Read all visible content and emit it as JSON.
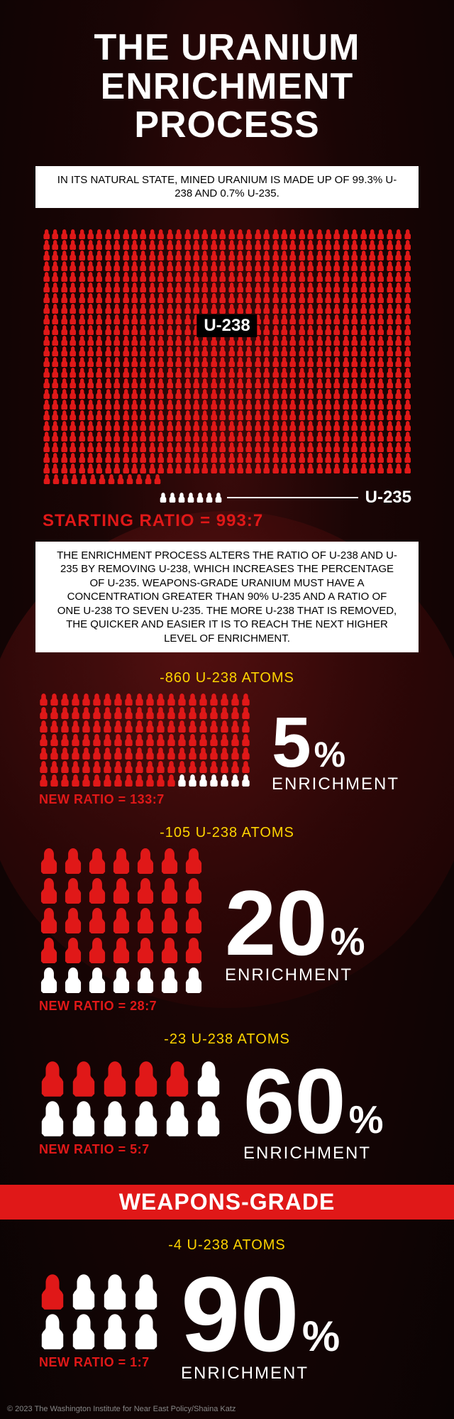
{
  "title_line1": "THE URANIUM",
  "title_line2": "ENRICHMENT",
  "title_line3": "PROCESS",
  "intro_box": "IN ITS NATURAL STATE, MINED URANIUM IS MADE UP OF 99.3% U-238 AND 0.7% U-235.",
  "starting_grid": {
    "rows": 24,
    "cols": 42,
    "last_row_u238": 13,
    "u238_label": "U-238",
    "u235_count": 7,
    "u235_label": "U-235"
  },
  "starting_ratio": "STARTING RATIO = 993:7",
  "process_box": "THE ENRICHMENT PROCESS ALTERS THE RATIO OF U-238 AND U-235 BY REMOVING U-238, WHICH INCREASES THE PERCENTAGE OF U-235. WEAPONS-GRADE URANIUM MUST HAVE A CONCENTRATION GREATER THAN 90% U-235 AND A RATIO OF ONE U-238 TO SEVEN U-235. THE MORE U-238 THAT IS REMOVED, THE QUICKER AND EASIER IT IS TO REACH THE NEXT HIGHER LEVEL OF ENRICHMENT.",
  "colors": {
    "u238": "#e01818",
    "u235": "#ffffff",
    "accent_yellow": "#ffd400",
    "accent_red": "#e01818"
  },
  "stages": [
    {
      "removed": "-860 U-238 ATOMS",
      "grid": {
        "rows": 7,
        "cols": 20,
        "u238": 133,
        "u235": 7
      },
      "ratio": "NEW RATIO = 133:7",
      "pct_num": "5",
      "pct_sign": "%",
      "pct_num_size": 100,
      "pct_sign_size": 50,
      "label": "ENRICHMENT",
      "atom_class": "atom-med"
    },
    {
      "removed": "-105 U-238 ATOMS",
      "grid": {
        "rows": 5,
        "cols": 7,
        "u238": 28,
        "u235": 7
      },
      "ratio": "NEW RATIO = 28:7",
      "pct_num": "20",
      "pct_sign": "%",
      "pct_num_size": 130,
      "pct_sign_size": 55,
      "label": "ENRICHMENT",
      "atom_class": "atom-lg"
    },
    {
      "removed": "-23 U-238 ATOMS",
      "grid": {
        "rows": 2,
        "cols": 6,
        "u238": 5,
        "u235": 7
      },
      "ratio": "NEW RATIO = 5:7",
      "pct_num": "60",
      "pct_sign": "%",
      "pct_num_size": 130,
      "pct_sign_size": 55,
      "label": "ENRICHMENT",
      "atom_class": "atom-xl"
    }
  ],
  "weapons_banner": "WEAPONS-GRADE",
  "final_stage": {
    "removed": "-4 U-238 ATOMS",
    "grid": {
      "rows": 2,
      "cols": 4,
      "u238": 1,
      "u235": 7
    },
    "ratio": "NEW RATIO = 1:7",
    "pct_num": "90",
    "pct_sign": "%",
    "pct_num_size": 150,
    "pct_sign_size": 60,
    "label": "ENRICHMENT",
    "atom_class": "atom-xl"
  },
  "footer": "© 2023 The Washington Institute for Near East Policy/Shaina Katz"
}
